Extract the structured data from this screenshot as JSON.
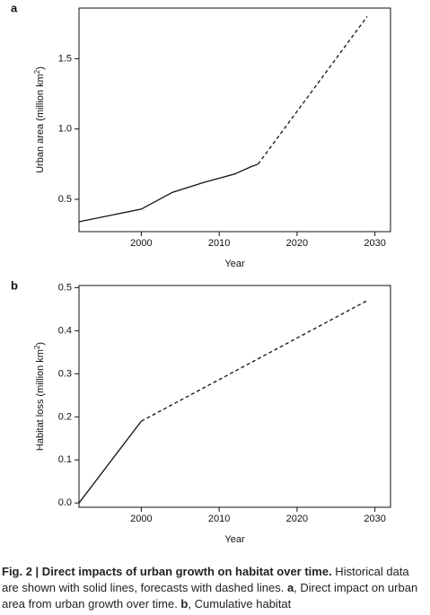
{
  "chart_data": [
    {
      "panel": "a",
      "type": "line",
      "xlabel": "Year",
      "ylabel": "Urban area (million km²)",
      "ylabel_main": "Urban area (million km",
      "ylabel_sup": "2",
      "ylabel_close": ")",
      "xlim": [
        1992,
        2032
      ],
      "ylim": [
        0.27,
        1.86
      ],
      "xticks": [
        2000,
        2010,
        2020,
        2030
      ],
      "yticks": [
        0.5,
        1.0,
        1.5
      ],
      "ytick_labels": [
        "0.5",
        "1.0",
        "1.5"
      ],
      "grid": false,
      "series": [
        {
          "style": "solid",
          "x": [
            1992,
            2000,
            2004,
            2008,
            2012,
            2014,
            2015
          ],
          "y": [
            0.34,
            0.43,
            0.55,
            0.62,
            0.68,
            0.73,
            0.75
          ]
        },
        {
          "style": "dashed",
          "x": [
            2015,
            2029
          ],
          "y": [
            0.75,
            1.8
          ]
        }
      ]
    },
    {
      "panel": "b",
      "type": "line",
      "xlabel": "Year",
      "ylabel": "Habitat loss (million km²)",
      "ylabel_main": "Habitat loss (million km",
      "ylabel_sup": "2",
      "ylabel_close": ")",
      "xlim": [
        1992,
        2032
      ],
      "ylim": [
        -0.01,
        0.505
      ],
      "xticks": [
        2000,
        2010,
        2020,
        2030
      ],
      "yticks": [
        0.0,
        0.1,
        0.2,
        0.3,
        0.4,
        0.5
      ],
      "ytick_labels": [
        "0.0",
        "0.1",
        "0.2",
        "0.3",
        "0.4",
        "0.5"
      ],
      "grid": false,
      "series": [
        {
          "style": "solid",
          "x": [
            1992,
            2000
          ],
          "y": [
            0.0,
            0.19
          ]
        },
        {
          "style": "dashed",
          "x": [
            2000,
            2029
          ],
          "y": [
            0.19,
            0.47
          ]
        }
      ]
    }
  ],
  "caption": {
    "label": "Fig. 2 | Direct impacts of urban growth on habitat over time.",
    "text_1": " Historical data are shown with solid lines, forecasts with dashed lines. ",
    "a_letter": "a",
    "text_2": ", Direct impact on urban area from urban growth over time. ",
    "b_letter": "b",
    "text_3": ", Cumulative habitat"
  }
}
